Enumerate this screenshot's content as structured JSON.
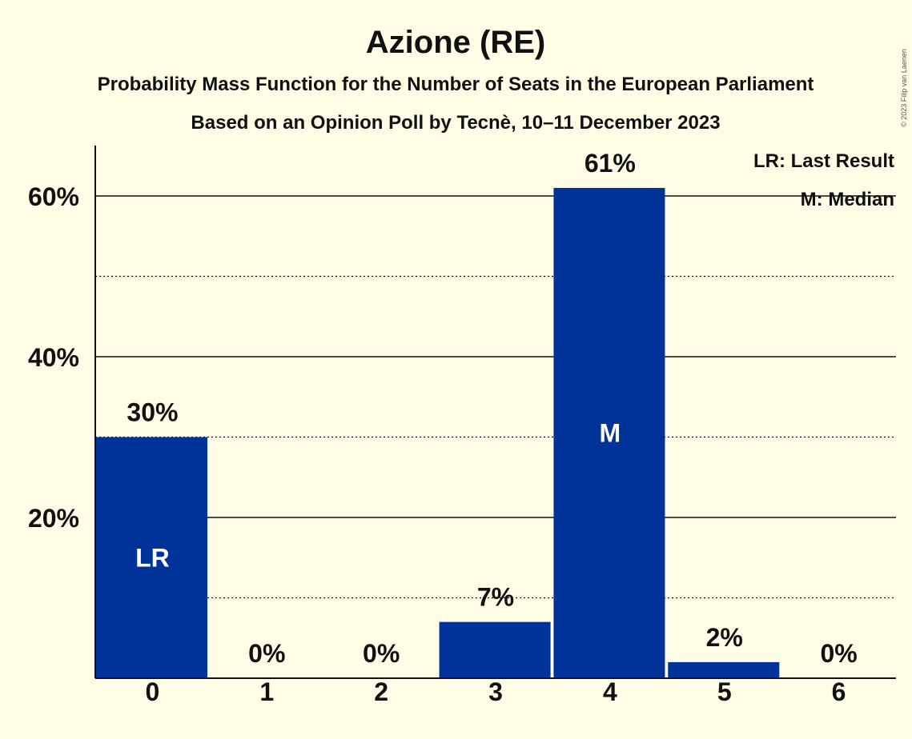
{
  "header": {
    "title": "Azione (RE)",
    "subtitle": "Probability Mass Function for the Number of Seats in the European Parliament",
    "subtitle2": "Based on an Opinion Poll by Tecnè, 10–11 December 2023"
  },
  "legend": {
    "last_result": "LR: Last Result",
    "median": "M: Median"
  },
  "copyright": "© 2023 Filip van Laenen",
  "colors": {
    "bar": "#003399",
    "background": "#fffde6"
  },
  "chart_data": {
    "type": "bar",
    "title": "Azione (RE)",
    "categories": [
      "0",
      "1",
      "2",
      "3",
      "4",
      "5",
      "6"
    ],
    "values": [
      30,
      0,
      0,
      7,
      61,
      2,
      0
    ],
    "value_labels": [
      "30%",
      "0%",
      "0%",
      "7%",
      "61%",
      "2%",
      "0%"
    ],
    "bar_markers": [
      "LR",
      "",
      "",
      "",
      "M",
      "",
      ""
    ],
    "y_ticks": [
      20,
      40,
      60
    ],
    "y_tick_labels": [
      "20%",
      "40%",
      "60%"
    ],
    "ylim": [
      0,
      66
    ],
    "grid": "solid at 20% steps, dotted at 10% steps",
    "legend_position": "top-right"
  }
}
